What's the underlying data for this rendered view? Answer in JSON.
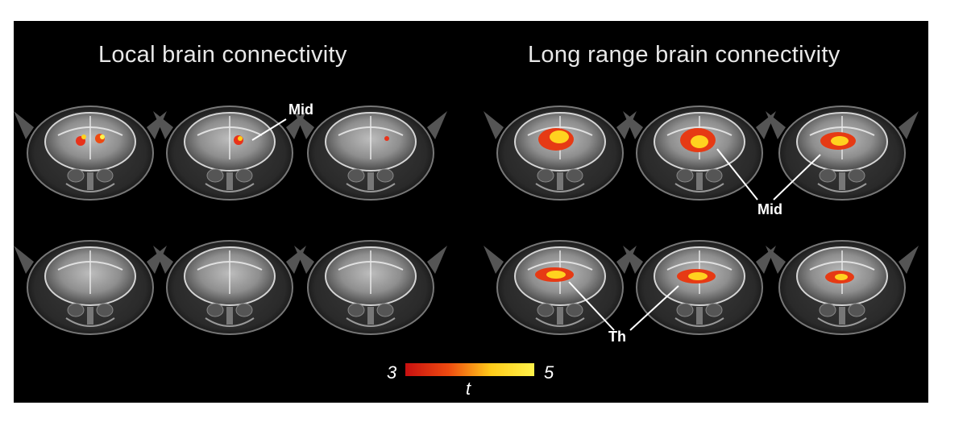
{
  "panels": {
    "left_title": "Local brain connectivity",
    "right_title": "Long range brain connectivity"
  },
  "labels": {
    "mid_left": "Mid",
    "mid_right": "Mid",
    "th": "Th"
  },
  "colorbar": {
    "min": "3",
    "max": "5",
    "variable": "t",
    "colors": [
      "#c81010",
      "#ee4a10",
      "#ffcc1a",
      "#fff24a"
    ]
  },
  "grid": {
    "rows": 2,
    "cols_per_panel": 3
  }
}
